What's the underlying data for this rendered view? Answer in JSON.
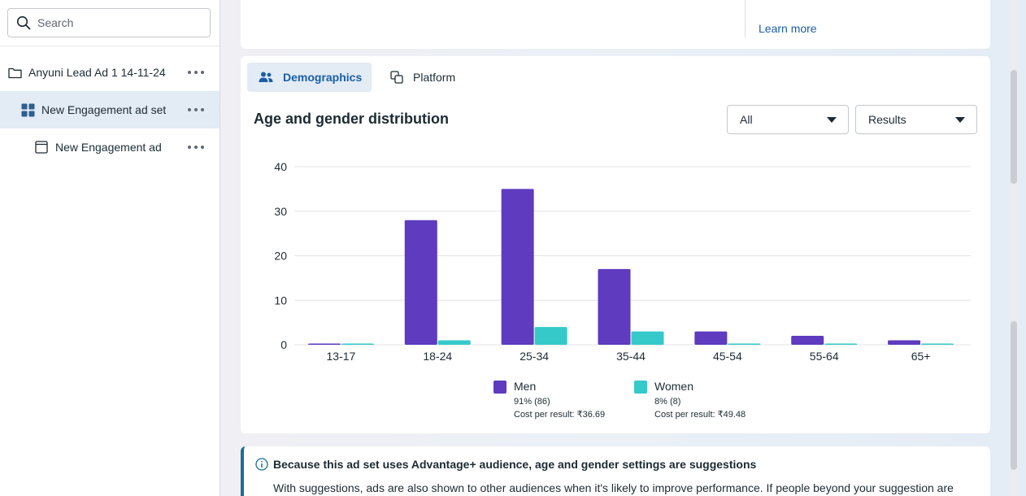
{
  "sidebar": {
    "search_placeholder": "Search",
    "items": [
      {
        "label": "Anyuni Lead Ad 1 14-11-24",
        "icon": "folder-icon"
      },
      {
        "label": "New Engagement ad set",
        "icon": "adset-grid-icon"
      },
      {
        "label": "New Engagement ad",
        "icon": "ad-window-icon"
      }
    ]
  },
  "top_card": {
    "learn_more": "Learn more"
  },
  "tabs": [
    {
      "label": "Demographics",
      "icon": "people-icon"
    },
    {
      "label": "Platform",
      "icon": "platform-icon"
    }
  ],
  "section": {
    "title": "Age and gender distribution"
  },
  "filters": {
    "audience": "All",
    "metric": "Results"
  },
  "legend": {
    "men": {
      "name": "Men",
      "pct": "91% (86)",
      "cost": "Cost per result: ₹36.69"
    },
    "women": {
      "name": "Women",
      "pct": "8% (8)",
      "cost": "Cost per result: ₹49.48"
    }
  },
  "info": {
    "title": "Because this ad set uses Advantage+ audience, age and gender settings are suggestions",
    "body": "With suggestions, ads are also shown to other audiences when it's likely to improve performance. If people beyond your suggestion are"
  },
  "colors": {
    "men": "#5e3bbf",
    "women": "#36c9c9",
    "accent": "#1a5fa8"
  },
  "chart_data": {
    "type": "bar",
    "title": "Age and gender distribution",
    "categories": [
      "13-17",
      "18-24",
      "25-34",
      "35-44",
      "45-54",
      "55-64",
      "65+"
    ],
    "series": [
      {
        "name": "Men",
        "values": [
          0.2,
          28,
          35,
          17,
          3,
          2,
          1
        ]
      },
      {
        "name": "Women",
        "values": [
          0.2,
          1,
          4,
          3,
          0.2,
          0.2,
          0.2
        ]
      }
    ],
    "yticks": [
      0,
      10,
      20,
      30,
      40
    ],
    "ylim": [
      0,
      40
    ],
    "xlabel": "",
    "ylabel": "",
    "grid": true,
    "legend": "bottom"
  }
}
